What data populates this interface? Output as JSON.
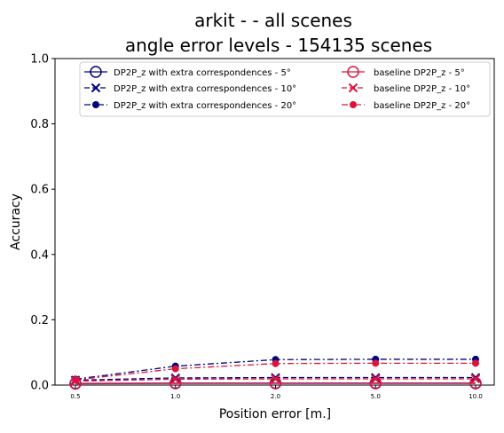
{
  "chart_data": {
    "type": "line",
    "title_line1": "arkit -  - all scenes",
    "title_line2": "angle error levels - 154135 scenes",
    "xlabel": "Position error [m.]",
    "ylabel": "Accuracy",
    "categories": [
      "0.5",
      "1.0",
      "2.0",
      "5.0",
      "10.0"
    ],
    "ylim": [
      0,
      1.0
    ],
    "yticks": [
      "0.0",
      "0.2",
      "0.4",
      "0.6",
      "0.8",
      "1.0"
    ],
    "grid": false,
    "legend_position": "top-right",
    "series": [
      {
        "name": "DP2P_z with extra correspondences - 5°",
        "color": "#000080",
        "linestyle": "solid",
        "marker": "circle-open",
        "values": [
          0.005,
          0.006,
          0.006,
          0.006,
          0.006
        ]
      },
      {
        "name": "DP2P_z with extra correspondences - 10°",
        "color": "#000080",
        "linestyle": "dashed",
        "marker": "x",
        "values": [
          0.015,
          0.022,
          0.023,
          0.023,
          0.023
        ]
      },
      {
        "name": "DP2P_z with extra correspondences - 20°",
        "color": "#000080",
        "linestyle": "dashdot",
        "marker": "circle-filled",
        "values": [
          0.018,
          0.058,
          0.078,
          0.079,
          0.079
        ]
      },
      {
        "name": "baseline DP2P_z - 5°",
        "color": "#dc143c",
        "linestyle": "solid",
        "marker": "circle-open",
        "values": [
          0.004,
          0.005,
          0.005,
          0.005,
          0.005
        ]
      },
      {
        "name": "baseline DP2P_z - 10°",
        "color": "#dc143c",
        "linestyle": "dashed",
        "marker": "x",
        "values": [
          0.012,
          0.018,
          0.019,
          0.019,
          0.019
        ]
      },
      {
        "name": "baseline DP2P_z - 20°",
        "color": "#dc143c",
        "linestyle": "dashdot",
        "marker": "circle-filled",
        "values": [
          0.016,
          0.05,
          0.066,
          0.067,
          0.067
        ]
      }
    ]
  }
}
